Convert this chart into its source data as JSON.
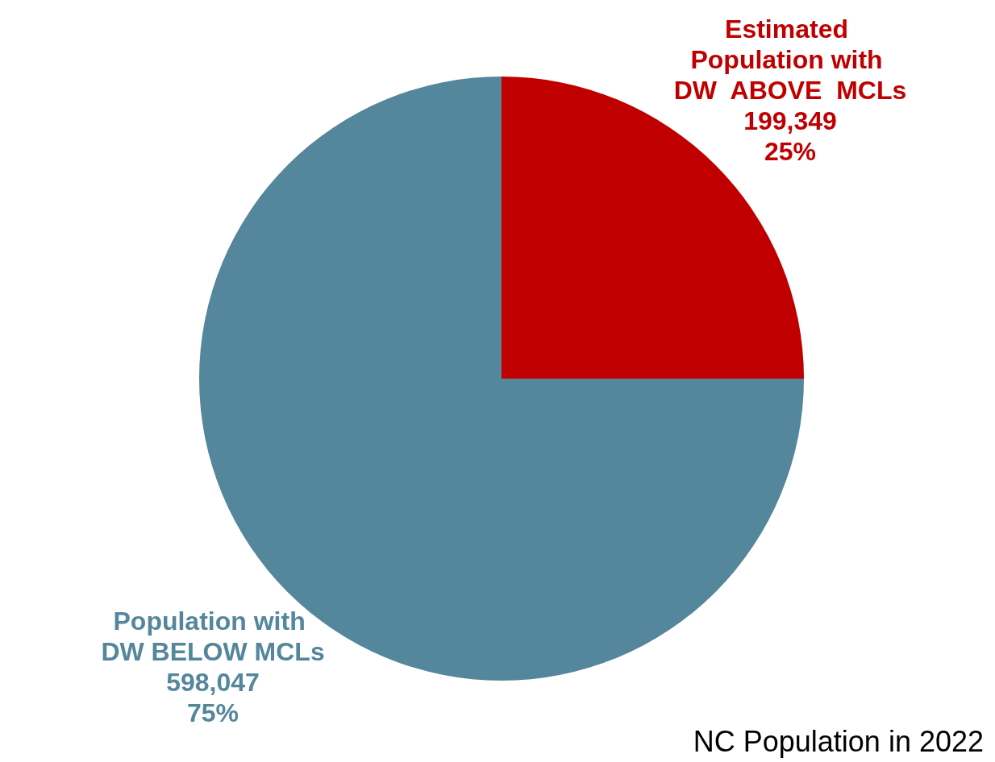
{
  "chart_data": {
    "type": "pie",
    "categories": [
      "Estimated Population with DW  ABOVE  MCLs",
      "Population with DW BELOW MCLs"
    ],
    "values": [
      199349,
      598047
    ],
    "value_labels": [
      "199,349\n25%",
      "598,047\n75%"
    ],
    "colors": [
      "#c00000",
      "#54869c"
    ],
    "legend": false,
    "annotations": [
      "NC Population in 2022"
    ]
  }
}
